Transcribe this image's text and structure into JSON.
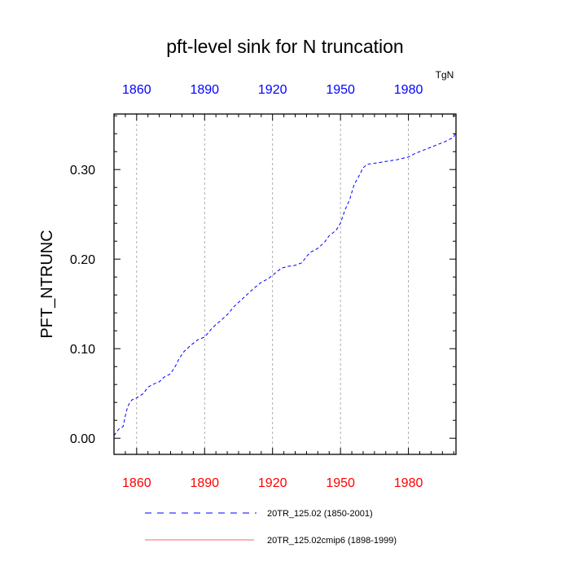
{
  "chart_data": {
    "type": "line",
    "title": "pft-level sink for N truncation",
    "ylabel": "PFT_NTRUNC",
    "units": "TgN",
    "xlim": [
      1850,
      2001
    ],
    "ylim": [
      -0.018,
      0.362
    ],
    "x_ticks": [
      1860,
      1890,
      1920,
      1950,
      1980
    ],
    "x_tick_labels": [
      "1860",
      "1890",
      "1920",
      "1950",
      "1980"
    ],
    "y_ticks": [
      0.0,
      0.1,
      0.2,
      0.3
    ],
    "y_tick_labels": [
      "0.00",
      "0.10",
      "0.20",
      "0.30"
    ],
    "grid": "vertical dotted at x ticks",
    "colors": {
      "bottom_ticks": "#ff0000",
      "top_ticks": "#0000ff",
      "series1": "#0000ff",
      "series2": "#ff6666"
    },
    "series": [
      {
        "name": "20TR_125.02 (1850-2001)",
        "style": "dashed",
        "x": [
          1850,
          1852,
          1854,
          1855,
          1856,
          1857,
          1858,
          1860,
          1863,
          1865,
          1867,
          1870,
          1872,
          1875,
          1877,
          1879,
          1881,
          1884,
          1887,
          1890,
          1893,
          1895,
          1897,
          1900,
          1903,
          1906,
          1909,
          1912,
          1915,
          1918,
          1921,
          1924,
          1927,
          1930,
          1933,
          1935,
          1937,
          1940,
          1943,
          1945,
          1948,
          1950,
          1952,
          1954,
          1956,
          1958,
          1960,
          1962,
          1965,
          1970,
          1975,
          1980,
          1983,
          1986,
          1990,
          1993,
          1996,
          2000,
          2001
        ],
        "y": [
          0.003,
          0.01,
          0.013,
          0.025,
          0.035,
          0.04,
          0.043,
          0.045,
          0.05,
          0.057,
          0.06,
          0.063,
          0.068,
          0.072,
          0.08,
          0.09,
          0.097,
          0.104,
          0.11,
          0.113,
          0.122,
          0.127,
          0.131,
          0.138,
          0.147,
          0.154,
          0.161,
          0.168,
          0.174,
          0.178,
          0.184,
          0.19,
          0.192,
          0.193,
          0.196,
          0.203,
          0.208,
          0.212,
          0.219,
          0.226,
          0.232,
          0.24,
          0.255,
          0.266,
          0.283,
          0.292,
          0.302,
          0.306,
          0.307,
          0.309,
          0.311,
          0.314,
          0.318,
          0.321,
          0.325,
          0.328,
          0.331,
          0.336,
          0.343
        ]
      },
      {
        "name": "20TR_125.02cmip6 (1898-1999)",
        "style": "solid",
        "x": [],
        "y": []
      }
    ]
  }
}
